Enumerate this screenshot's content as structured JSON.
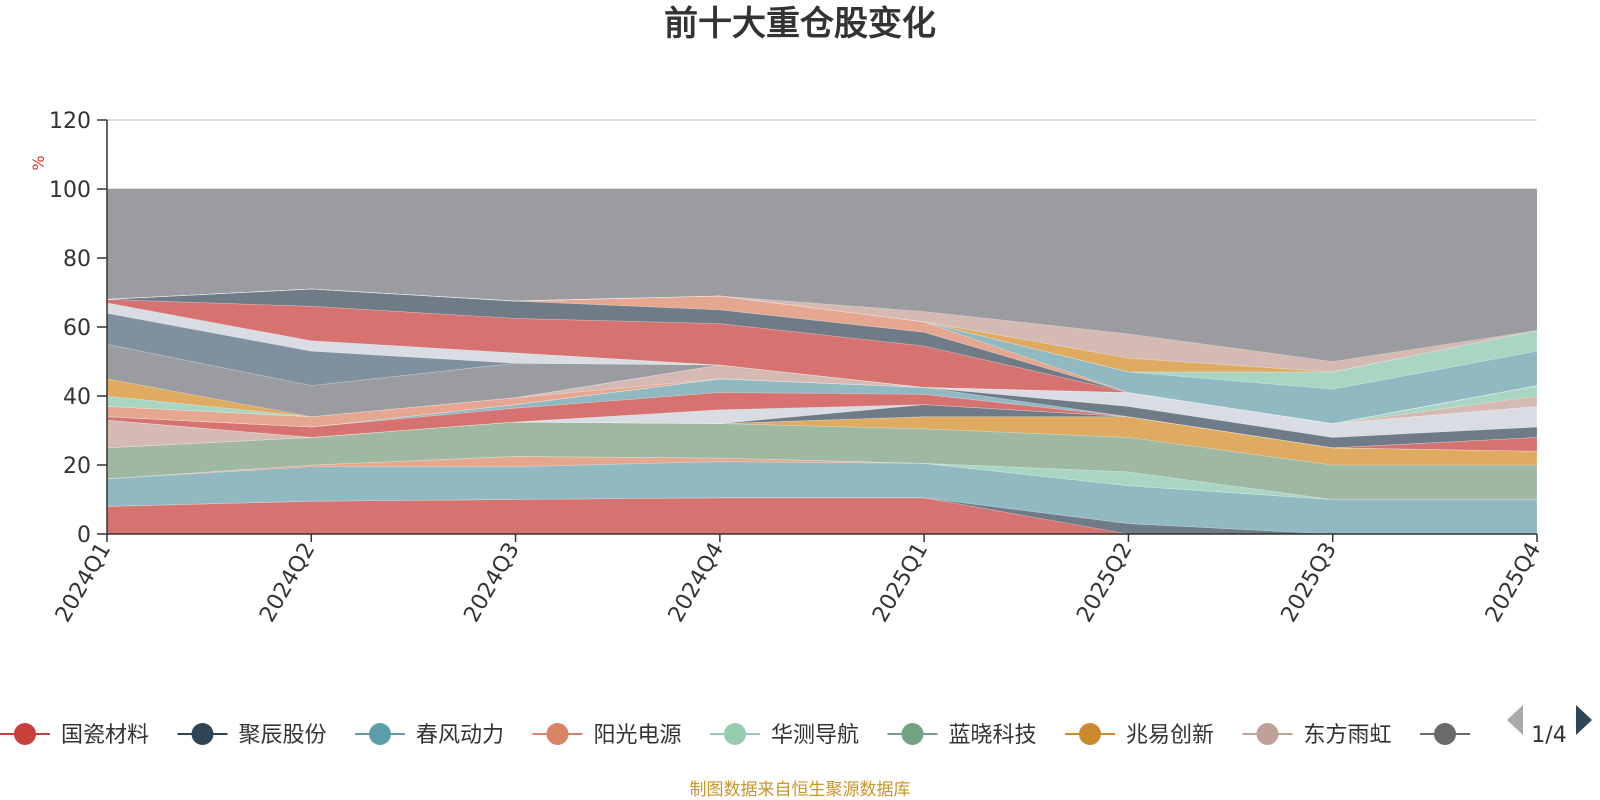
{
  "title": "前十大重仓股变化",
  "source_note": "制图数据来自恒生聚源数据库",
  "legend_page": "1/4",
  "chart_data": {
    "type": "area",
    "title": "前十大重仓股变化",
    "ylabel": "%",
    "xlabel": "",
    "ylim": [
      0,
      120
    ],
    "yticks": [
      0,
      20,
      40,
      60,
      80,
      100,
      120
    ],
    "grid": true,
    "legend_position": "bottom",
    "categories": [
      "2024Q1",
      "2024Q2",
      "2024Q3",
      "2024Q4",
      "2025Q1",
      "2025Q2",
      "2025Q3",
      "2025Q4"
    ],
    "stack_total_color": "#9b9ca0",
    "series": [
      {
        "name": "国瓷材料",
        "color": "#d9706d",
        "values": [
          8,
          9.5,
          10,
          10.5,
          10.5,
          0,
          0,
          0
        ]
      },
      {
        "name": "聚辰股份",
        "color": "#6d7986",
        "values": [
          0,
          0,
          0,
          0,
          0,
          3,
          0,
          0
        ]
      },
      {
        "name": "春风动力",
        "color": "#8fbbc3",
        "values": [
          8,
          10,
          9.5,
          10.5,
          10,
          11,
          10,
          10
        ]
      },
      {
        "name": "阳光电源",
        "color": "#e9a88f",
        "values": [
          0,
          0.5,
          3,
          1,
          0,
          0,
          0,
          0
        ]
      },
      {
        "name": "华测导航",
        "color": "#a9d9c4",
        "values": [
          0,
          0,
          0,
          0,
          0,
          4,
          0,
          0
        ]
      },
      {
        "name": "蓝晓科技",
        "color": "#9fb9a2",
        "values": [
          9,
          8,
          10,
          10,
          10,
          10,
          10,
          10
        ]
      },
      {
        "name": "兆易创新",
        "color": "#e2ac5e",
        "values": [
          0,
          0,
          0,
          0,
          3.5,
          6,
          5,
          4
        ]
      },
      {
        "name": "东方雨虹",
        "color": "#d8bcb5",
        "values": [
          8,
          0,
          0,
          0,
          0,
          0,
          0,
          0
        ]
      },
      {
        "name": "",
        "color": "#6d7986",
        "values": [
          0,
          0,
          0,
          0,
          3.5,
          0,
          0,
          0
        ]
      }
    ],
    "upper_bands": [
      {
        "color": "#dcdfe6",
        "values": [
          0,
          0,
          0,
          4,
          0,
          0,
          0,
          0
        ]
      },
      {
        "color": "#d9706d",
        "values": [
          1,
          3,
          4,
          5,
          3,
          0,
          0,
          4
        ]
      },
      {
        "color": "#8fbbc3",
        "values": [
          0,
          0,
          1,
          4,
          2,
          0,
          0,
          0
        ]
      },
      {
        "color": "#6d7986",
        "values": [
          0,
          0,
          0,
          0,
          0,
          3,
          3,
          3
        ]
      },
      {
        "color": "#dcdfe6",
        "values": [
          0,
          0,
          0,
          0,
          0,
          4,
          4,
          6
        ]
      },
      {
        "color": "#e9a88f",
        "values": [
          3,
          3,
          2,
          0,
          0,
          0,
          0,
          0
        ]
      },
      {
        "color": "#d8bcb5",
        "values": [
          0,
          0,
          0,
          4,
          0,
          0,
          0,
          3
        ]
      },
      {
        "color": "#a9d9c4",
        "values": [
          3,
          0,
          0,
          0,
          0,
          0,
          0,
          3
        ]
      },
      {
        "color": "#e2ac5e",
        "values": [
          5,
          0,
          0,
          0,
          0,
          0,
          0,
          0
        ]
      },
      {
        "color": "#9b9ca0",
        "values": [
          10,
          9,
          10,
          0,
          0,
          0,
          0,
          0
        ]
      },
      {
        "color": "#7d8f9e",
        "values": [
          9,
          10,
          0,
          0,
          0,
          0,
          0,
          0
        ]
      },
      {
        "color": "#dcdfe6",
        "values": [
          3,
          3,
          3,
          0,
          0,
          0,
          0,
          0
        ]
      },
      {
        "color": "#d9706d",
        "values": [
          1,
          10,
          10,
          12,
          12,
          0,
          0,
          0
        ]
      },
      {
        "color": "#6d7986",
        "values": [
          0,
          5,
          5,
          4,
          4,
          0,
          0,
          0
        ]
      },
      {
        "color": "#e9a88f",
        "values": [
          0,
          0,
          0,
          4,
          3,
          0,
          0,
          0
        ]
      },
      {
        "color": "#8fbbc3",
        "values": [
          0,
          0,
          0,
          0,
          0,
          6,
          10,
          10
        ]
      },
      {
        "color": "#a9d9c4",
        "values": [
          0,
          0,
          0,
          0,
          0,
          0,
          5,
          6
        ]
      },
      {
        "color": "#e2ac5e",
        "values": [
          0,
          0,
          0,
          0,
          0,
          4,
          0,
          0
        ]
      },
      {
        "color": "#d8bcb5",
        "values": [
          0,
          0,
          0,
          0,
          3,
          7,
          3,
          0
        ]
      }
    ]
  },
  "legend_items": [
    {
      "label": "国瓷材料",
      "color": "#c8403e"
    },
    {
      "label": "聚辰股份",
      "color": "#2e4557"
    },
    {
      "label": "春风动力",
      "color": "#5e9ea9"
    },
    {
      "label": "阳光电源",
      "color": "#da8466"
    },
    {
      "label": "华测导航",
      "color": "#95cdb1"
    },
    {
      "label": "蓝晓科技",
      "color": "#72a183"
    },
    {
      "label": "兆易创新",
      "color": "#cd8a2c"
    },
    {
      "label": "东方雨虹",
      "color": "#bfa198"
    },
    {
      "label": "",
      "color": "#6a6a6a"
    }
  ]
}
